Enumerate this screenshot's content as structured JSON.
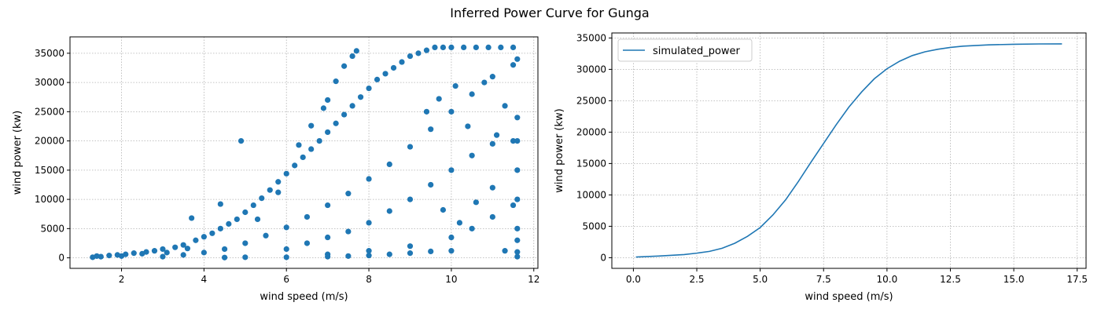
{
  "figure": {
    "title": "Inferred Power Curve for Gunga"
  },
  "colors": {
    "series": "#1f77b4",
    "grid": "#b0b0b0",
    "axis": "#000000",
    "background": "#ffffff"
  },
  "chart_data": [
    {
      "type": "scatter",
      "title": "",
      "xlabel": "wind speed (m/s)",
      "ylabel": "wind power (kw)",
      "xlim": [
        0.75,
        12.1
      ],
      "ylim": [
        -1800,
        37800
      ],
      "x_ticks": [
        2,
        4,
        6,
        8,
        10,
        12
      ],
      "y_ticks": [
        0,
        5000,
        10000,
        15000,
        20000,
        25000,
        30000,
        35000
      ],
      "grid": true,
      "legend": "none",
      "marker": "circle",
      "series": [
        {
          "points": [
            [
              1.3,
              100
            ],
            [
              1.4,
              300
            ],
            [
              1.5,
              200
            ],
            [
              1.7,
              400
            ],
            [
              1.9,
              500
            ],
            [
              2.0,
              300
            ],
            [
              2.1,
              600
            ],
            [
              2.3,
              800
            ],
            [
              2.5,
              700
            ],
            [
              2.6,
              1000
            ],
            [
              2.8,
              1200
            ],
            [
              3.0,
              1500
            ],
            [
              3.1,
              900
            ],
            [
              3.3,
              1800
            ],
            [
              3.5,
              2200
            ],
            [
              3.6,
              1600
            ],
            [
              3.8,
              3000
            ],
            [
              4.0,
              3600
            ],
            [
              4.2,
              4200
            ],
            [
              4.4,
              5000
            ],
            [
              4.6,
              5800
            ],
            [
              4.8,
              6600
            ],
            [
              5.0,
              7800
            ],
            [
              5.2,
              9000
            ],
            [
              5.4,
              10200
            ],
            [
              5.6,
              11600
            ],
            [
              5.8,
              13000
            ],
            [
              6.0,
              14400
            ],
            [
              6.2,
              15800
            ],
            [
              6.4,
              17200
            ],
            [
              6.6,
              18600
            ],
            [
              6.8,
              20000
            ],
            [
              7.0,
              21500
            ],
            [
              7.2,
              23000
            ],
            [
              7.4,
              24500
            ],
            [
              7.6,
              26000
            ],
            [
              7.8,
              27500
            ],
            [
              8.0,
              29000
            ],
            [
              8.2,
              30500
            ],
            [
              8.4,
              31500
            ],
            [
              8.6,
              32500
            ],
            [
              8.8,
              33500
            ],
            [
              9.0,
              34500
            ],
            [
              9.2,
              35000
            ],
            [
              9.4,
              35500
            ],
            [
              9.6,
              36000
            ],
            [
              9.8,
              36000
            ],
            [
              10.0,
              36000
            ],
            [
              10.3,
              36000
            ],
            [
              10.6,
              36000
            ],
            [
              10.9,
              36000
            ],
            [
              11.2,
              36000
            ],
            [
              11.5,
              36000
            ],
            [
              3.0,
              200
            ],
            [
              3.5,
              500
            ],
            [
              4.0,
              900
            ],
            [
              4.5,
              1500
            ],
            [
              5.0,
              2500
            ],
            [
              5.5,
              3800
            ],
            [
              6.0,
              5200
            ],
            [
              6.5,
              7000
            ],
            [
              7.0,
              9000
            ],
            [
              7.5,
              11000
            ],
            [
              8.0,
              13500
            ],
            [
              8.5,
              16000
            ],
            [
              9.0,
              19000
            ],
            [
              9.5,
              22000
            ],
            [
              10.0,
              25000
            ],
            [
              10.5,
              28000
            ],
            [
              11.0,
              31000
            ],
            [
              11.5,
              33000
            ],
            [
              6.0,
              1500
            ],
            [
              6.5,
              2500
            ],
            [
              7.0,
              3500
            ],
            [
              7.5,
              4500
            ],
            [
              8.0,
              6000
            ],
            [
              8.5,
              8000
            ],
            [
              9.0,
              10000
            ],
            [
              9.5,
              12500
            ],
            [
              10.0,
              15000
            ],
            [
              10.5,
              17500
            ],
            [
              11.0,
              19500
            ],
            [
              11.5,
              20000
            ],
            [
              7.0,
              600
            ],
            [
              8.0,
              1200
            ],
            [
              9.0,
              2000
            ],
            [
              10.0,
              3500
            ],
            [
              10.5,
              5000
            ],
            [
              11.0,
              7000
            ],
            [
              11.5,
              9000
            ],
            [
              4.9,
              20000
            ],
            [
              3.7,
              6800
            ],
            [
              4.4,
              9200
            ],
            [
              5.3,
              6600
            ],
            [
              5.8,
              11200
            ],
            [
              6.3,
              19300
            ],
            [
              6.6,
              22600
            ],
            [
              7.2,
              30200
            ],
            [
              7.4,
              32800
            ],
            [
              7.6,
              34500
            ],
            [
              7.7,
              35400
            ],
            [
              7.0,
              27000
            ],
            [
              6.9,
              25600
            ],
            [
              9.4,
              25000
            ],
            [
              9.7,
              27200
            ],
            [
              10.1,
              29400
            ],
            [
              10.4,
              22500
            ],
            [
              10.8,
              30000
            ],
            [
              11.1,
              21000
            ],
            [
              11.3,
              26000
            ],
            [
              11.6,
              20000
            ],
            [
              11.6,
              15000
            ],
            [
              11.6,
              10000
            ],
            [
              11.6,
              5000
            ],
            [
              11.6,
              3000
            ],
            [
              11.6,
              1000
            ],
            [
              11.6,
              200
            ],
            [
              11.6,
              24000
            ],
            [
              11.6,
              34000
            ],
            [
              9.8,
              8200
            ],
            [
              10.2,
              6000
            ],
            [
              10.6,
              9500
            ],
            [
              11.0,
              12000
            ],
            [
              11.3,
              1200
            ],
            [
              10.0,
              1200
            ],
            [
              9.5,
              1100
            ],
            [
              9.0,
              800
            ],
            [
              8.5,
              600
            ],
            [
              8.0,
              400
            ],
            [
              7.5,
              300
            ],
            [
              7.0,
              200
            ],
            [
              6.0,
              100
            ],
            [
              5.0,
              100
            ],
            [
              4.5,
              50
            ]
          ]
        }
      ]
    },
    {
      "type": "line",
      "title": "",
      "xlabel": "wind speed (m/s)",
      "ylabel": "wind power (kw)",
      "xlim": [
        -0.85,
        17.85
      ],
      "ylim": [
        -1700,
        35800
      ],
      "x_ticks": [
        "0.0",
        "2.5",
        "5.0",
        "7.5",
        "10.0",
        "12.5",
        "15.0",
        "17.5"
      ],
      "y_ticks": [
        0,
        5000,
        10000,
        15000,
        20000,
        25000,
        30000,
        35000
      ],
      "grid": true,
      "legend": "top-left",
      "series": [
        {
          "name": "simulated_power",
          "x": [
            0.1,
            1.0,
            2.0,
            2.5,
            3.0,
            3.5,
            4.0,
            4.5,
            5.0,
            5.5,
            6.0,
            6.5,
            7.0,
            7.5,
            8.0,
            8.5,
            9.0,
            9.5,
            10.0,
            10.5,
            11.0,
            11.5,
            12.0,
            12.5,
            13.0,
            14.0,
            15.0,
            16.0,
            16.9
          ],
          "values": [
            100,
            260,
            500,
            720,
            1000,
            1500,
            2300,
            3400,
            4800,
            6800,
            9200,
            12100,
            15200,
            18200,
            21200,
            24000,
            26400,
            28500,
            30100,
            31300,
            32200,
            32800,
            33200,
            33500,
            33700,
            33900,
            34000,
            34050,
            34060
          ]
        }
      ]
    }
  ]
}
